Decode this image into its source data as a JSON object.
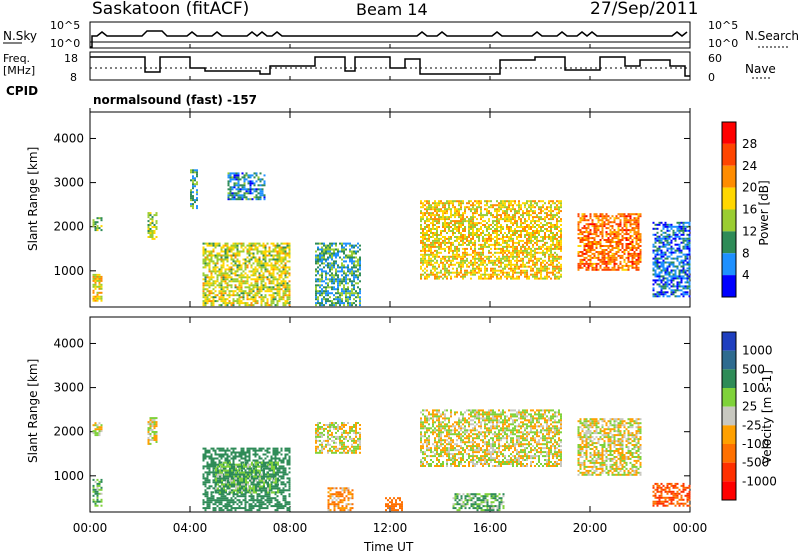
{
  "header": {
    "station": "Saskatoon (fitACF)",
    "beam": "Beam 14",
    "date": "27/Sep/2011"
  },
  "left_labels": {
    "nsky": "N.Sky",
    "freq": "Freq.",
    "freq_unit": "[MHz]",
    "cpid": "CPID"
  },
  "right_labels": {
    "nsearch": "N.Search",
    "nave": "Nave"
  },
  "noise_panel": {
    "left_ticks": [
      "10^5",
      "10^0"
    ],
    "right_ticks": [
      "10^5",
      "10^0"
    ]
  },
  "freq_panel": {
    "left_ticks": [
      "18",
      "8"
    ],
    "right_ticks": [
      "60",
      "0"
    ]
  },
  "cpid_text": "normalsound (fast) -157",
  "x_axis": {
    "label": "Time UT",
    "ticks": [
      "00:00",
      "04:00",
      "08:00",
      "12:00",
      "16:00",
      "20:00",
      "00:00"
    ]
  },
  "power_colorbar": {
    "label": "Power [dB]",
    "ticks": [
      "28",
      "24",
      "20",
      "16",
      "12",
      "8",
      "4"
    ],
    "colors": [
      "#ff0000",
      "#ff4500",
      "#ff8c00",
      "#ffd700",
      "#9acd32",
      "#2e8b57",
      "#1e90ff",
      "#0000ff"
    ]
  },
  "velocity_colorbar": {
    "label": "Velocity [m s-1]",
    "ticks": [
      "1000",
      "500",
      "100",
      "25",
      "-25",
      "-100",
      "-500",
      "-1000"
    ],
    "colors": [
      "#1f3fbf",
      "#2e6b8f",
      "#2e8b57",
      "#7fd23a",
      "#c8c8c0",
      "#ffa000",
      "#ff7000",
      "#ff3000",
      "#ff0000"
    ]
  },
  "chart_data": [
    {
      "type": "heatmap",
      "title": "",
      "ylabel": "Slant Range [km]",
      "xlabel": "",
      "yticks": [
        "1000",
        "2000",
        "3000",
        "4000"
      ],
      "ylim": [
        180,
        4600
      ],
      "xlim_hours": [
        0,
        24
      ],
      "variable": "Power",
      "regions": [
        {
          "t0": 0.1,
          "t1": 0.5,
          "r0": 300,
          "r1": 900,
          "v": 20
        },
        {
          "t0": 0.1,
          "t1": 0.5,
          "r0": 1900,
          "r1": 2200,
          "v": 14
        },
        {
          "t0": 2.3,
          "t1": 2.7,
          "r0": 1700,
          "r1": 2300,
          "v": 16
        },
        {
          "t0": 4.0,
          "t1": 4.3,
          "r0": 2400,
          "r1": 3300,
          "v": 12
        },
        {
          "t0": 4.5,
          "t1": 8.0,
          "r0": 200,
          "r1": 1600,
          "v": 18
        },
        {
          "t0": 5.5,
          "t1": 7.0,
          "r0": 2600,
          "r1": 3200,
          "v": 10
        },
        {
          "t0": 9.0,
          "t1": 10.8,
          "r0": 200,
          "r1": 1600,
          "v": 12
        },
        {
          "t0": 13.2,
          "t1": 18.8,
          "r0": 800,
          "r1": 2600,
          "v": 20
        },
        {
          "t0": 19.5,
          "t1": 22.0,
          "r0": 1000,
          "r1": 2300,
          "v": 26
        },
        {
          "t0": 22.5,
          "t1": 24.0,
          "r0": 400,
          "r1": 2100,
          "v": 8
        }
      ]
    },
    {
      "type": "heatmap",
      "title": "",
      "ylabel": "Slant Range [km]",
      "xlabel": "Time UT",
      "yticks": [
        "1000",
        "2000",
        "3000",
        "4000"
      ],
      "ylim": [
        180,
        4600
      ],
      "xlim_hours": [
        0,
        24
      ],
      "variable": "Velocity",
      "regions": [
        {
          "t0": 0.1,
          "t1": 0.5,
          "r0": 300,
          "r1": 900,
          "v": 100
        },
        {
          "t0": 0.1,
          "t1": 0.5,
          "r0": 1900,
          "r1": 2200,
          "v": 0
        },
        {
          "t0": 2.3,
          "t1": 2.7,
          "r0": 1700,
          "r1": 2300,
          "v": 0
        },
        {
          "t0": 4.5,
          "t1": 8.0,
          "r0": 200,
          "r1": 1600,
          "v": 300
        },
        {
          "t0": 5.0,
          "t1": 7.5,
          "r0": 600,
          "r1": 1300,
          "v": 100
        },
        {
          "t0": 9.0,
          "t1": 10.8,
          "r0": 1500,
          "r1": 2200,
          "v": 0
        },
        {
          "t0": 9.5,
          "t1": 10.5,
          "r0": 200,
          "r1": 700,
          "v": -100
        },
        {
          "t0": 11.8,
          "t1": 12.5,
          "r0": 200,
          "r1": 500,
          "v": -300
        },
        {
          "t0": 13.2,
          "t1": 18.8,
          "r0": 1200,
          "r1": 2500,
          "v": 0
        },
        {
          "t0": 14.5,
          "t1": 16.5,
          "r0": 200,
          "r1": 600,
          "v": 100
        },
        {
          "t0": 19.5,
          "t1": 22.0,
          "r0": 1000,
          "r1": 2300,
          "v": 0
        },
        {
          "t0": 22.5,
          "t1": 24.0,
          "r0": 300,
          "r1": 800,
          "v": -500
        }
      ]
    }
  ]
}
